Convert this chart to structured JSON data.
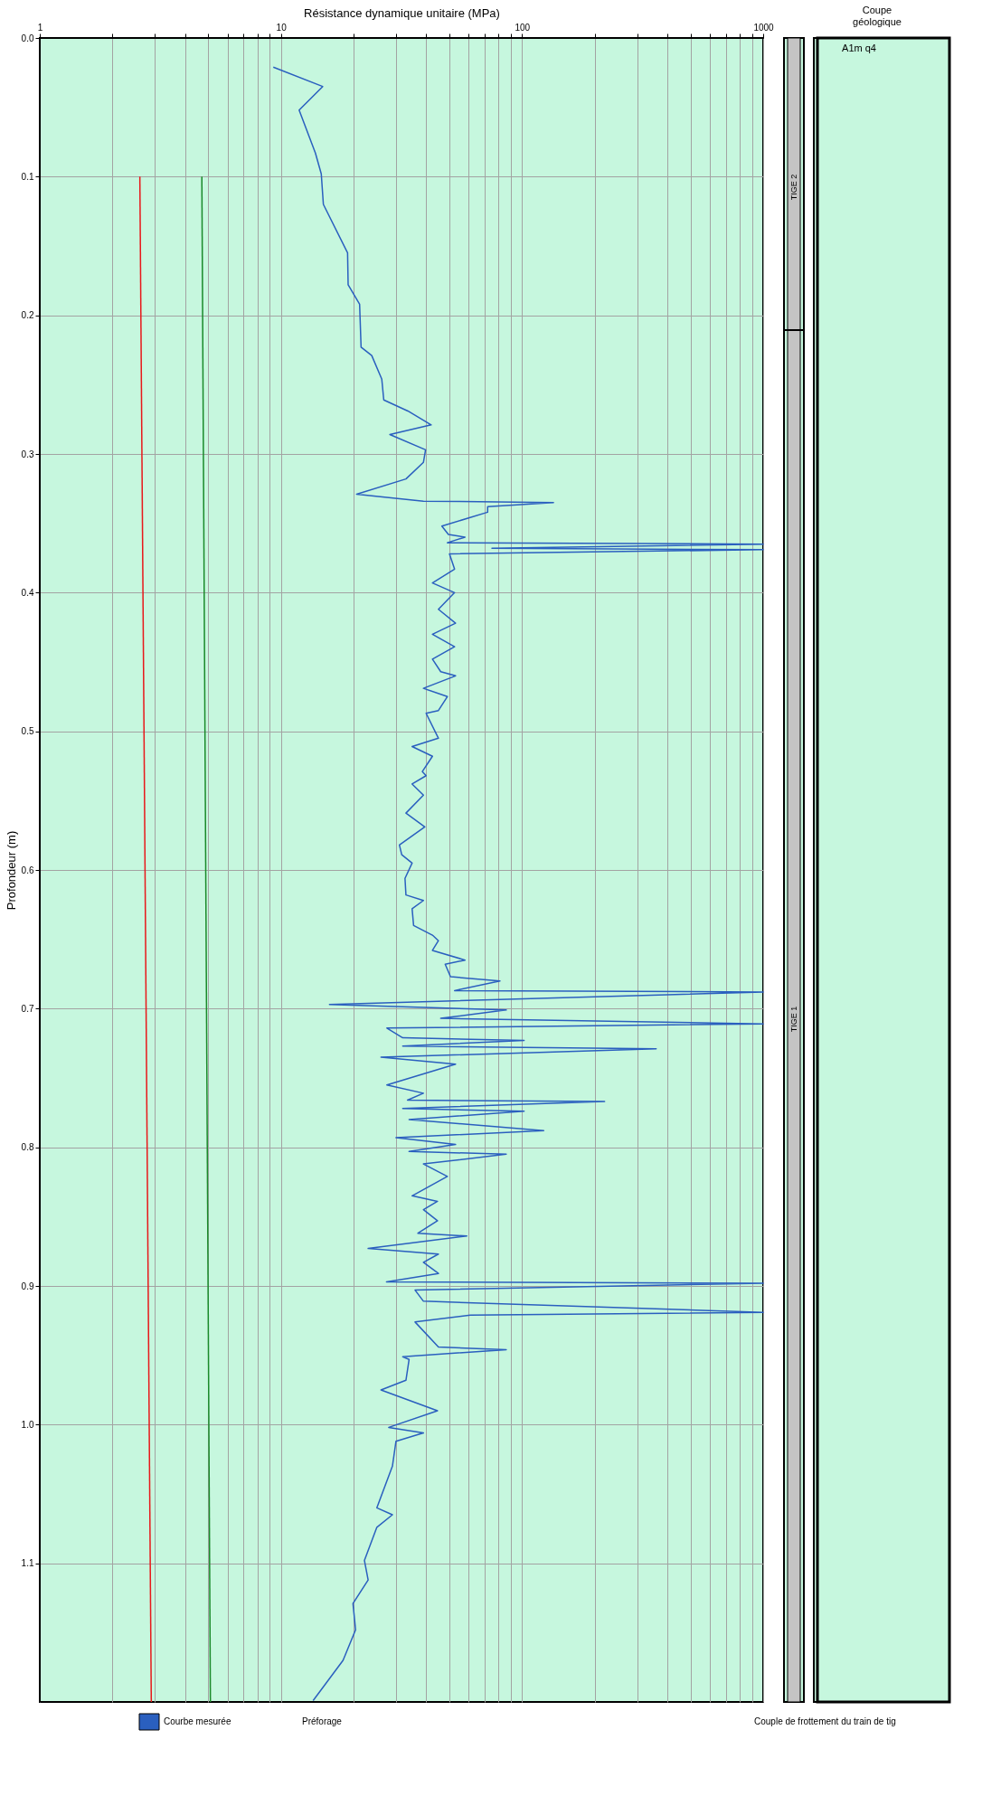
{
  "chart_data": {
    "type": "line",
    "xlabel": "Résistance dynamique unitaire (MPa)",
    "ylabel": "Profondeur (m)",
    "log": "x",
    "xlim": [
      1,
      1000
    ],
    "xticks": [
      1,
      {
        "value": 2,
        "label": null
      },
      {
        "value": 3,
        "label": null
      },
      {
        "value": 4,
        "label": null
      },
      {
        "value": 5,
        "label": null
      },
      {
        "value": 6,
        "label": null
      },
      {
        "value": 7,
        "label": null
      },
      {
        "value": 8,
        "label": null
      },
      {
        "value": 9,
        "label": null
      },
      10,
      {
        "value": 20,
        "label": null
      },
      {
        "value": 30,
        "label": null
      },
      {
        "value": 40,
        "label": null
      },
      {
        "value": 50,
        "label": null
      },
      {
        "value": 60,
        "label": null
      },
      {
        "value": 70,
        "label": null
      },
      {
        "value": 80,
        "label": null
      },
      {
        "value": 90,
        "label": null
      },
      100,
      {
        "value": 200,
        "label": null
      },
      {
        "value": 300,
        "label": null
      },
      {
        "value": 400,
        "label": null
      },
      {
        "value": 500,
        "label": null
      },
      {
        "value": 600,
        "label": null
      },
      {
        "value": 700,
        "label": null
      },
      {
        "value": 800,
        "label": null
      },
      {
        "value": 900,
        "label": null
      },
      1000
    ],
    "ylim": [
      1.2,
      0
    ],
    "yticks": [
      {
        "value": 0,
        "label": "0.0"
      },
      0.1,
      0.2,
      0.3,
      0.4,
      0.5,
      0.6,
      0.7,
      0.8,
      0.9,
      {
        "value": 1,
        "label": "1.0"
      },
      1.1
    ],
    "grid": true,
    "legend": "bottom",
    "series": [
      {
        "name": "Courbe mesurée",
        "color": "#2a5fbf",
        "x": [
          9.3,
          14.9,
          11.9,
          13.9,
          14.7,
          15,
          18.9,
          19,
          21.2,
          21.5,
          23.8,
          26.2,
          26.7,
          33.6,
          42,
          28.3,
          39.8,
          39,
          33,
          20.6,
          39,
          135,
          72,
          72,
          46.5,
          49.5,
          58,
          49,
          1000,
          75,
          1000,
          50,
          52.5,
          42.5,
          52.5,
          45,
          53,
          42.5,
          52.5,
          42.5,
          46,
          53,
          39,
          49,
          45,
          40,
          45,
          35,
          42.5,
          38.6,
          40,
          35,
          39,
          33,
          39.5,
          31,
          31.7,
          35,
          32.7,
          33,
          39,
          35,
          35.5,
          42.5,
          45,
          42.5,
          58,
          48,
          50.5,
          81,
          52.5,
          1000,
          15.9,
          86,
          46,
          1000,
          27.5,
          32,
          102,
          32,
          360,
          26,
          53,
          27.5,
          39,
          33.5,
          220,
          32,
          102,
          34,
          123,
          30,
          53,
          34,
          86,
          39,
          49,
          35,
          44.6,
          39,
          44.6,
          37,
          59,
          23,
          45,
          39,
          45,
          27.4,
          1000,
          36,
          39,
          1000,
          61,
          36,
          45,
          86,
          32,
          34,
          33,
          26,
          44.6,
          28,
          39,
          30,
          29,
          25,
          29,
          25,
          22.2,
          23,
          19.9,
          20.4,
          18.1,
          13.6
        ],
        "values": [
          0.021,
          0.035,
          0.052,
          0.083,
          0.098,
          0.12,
          0.155,
          0.178,
          0.192,
          0.223,
          0.229,
          0.246,
          0.261,
          0.269,
          0.279,
          0.286,
          0.297,
          0.306,
          0.318,
          0.329,
          0.334,
          0.335,
          0.338,
          0.342,
          0.352,
          0.358,
          0.36,
          0.364,
          0.365,
          0.368,
          0.369,
          0.372,
          0.383,
          0.393,
          0.4,
          0.412,
          0.422,
          0.43,
          0.439,
          0.448,
          0.457,
          0.46,
          0.469,
          0.475,
          0.485,
          0.487,
          0.505,
          0.511,
          0.518,
          0.529,
          0.532,
          0.538,
          0.546,
          0.559,
          0.569,
          0.582,
          0.589,
          0.595,
          0.606,
          0.618,
          0.622,
          0.628,
          0.64,
          0.647,
          0.651,
          0.658,
          0.665,
          0.668,
          0.677,
          0.68,
          0.687,
          0.688,
          0.697,
          0.701,
          0.707,
          0.711,
          0.714,
          0.721,
          0.723,
          0.727,
          0.729,
          0.735,
          0.74,
          0.755,
          0.761,
          0.766,
          0.767,
          0.772,
          0.774,
          0.78,
          0.788,
          0.793,
          0.798,
          0.803,
          0.805,
          0.812,
          0.821,
          0.835,
          0.839,
          0.845,
          0.853,
          0.862,
          0.864,
          0.873,
          0.877,
          0.883,
          0.891,
          0.897,
          0.898,
          0.903,
          0.911,
          0.919,
          0.921,
          0.926,
          0.944,
          0.946,
          0.951,
          0.953,
          0.968,
          0.975,
          0.99,
          1.002,
          1.006,
          1.012,
          1.03,
          1.06,
          1.065,
          1.074,
          1.098,
          1.112,
          1.129,
          1.148,
          1.17,
          1.199
        ]
      },
      {
        "color": "#e8181a",
        "x": [
          2.6,
          2.9
        ],
        "values": [
          0.1,
          1.2
        ]
      },
      {
        "color": "#1a8a2a",
        "x": [
          4.7,
          5.1
        ],
        "values": [
          0.1,
          1.2
        ]
      }
    ],
    "annotations": [
      "Coupe géologique",
      "A1m q4",
      "TIGE 2",
      "TIGE 1",
      "Préforage",
      "Couple de frottement du train de tig"
    ]
  }
}
